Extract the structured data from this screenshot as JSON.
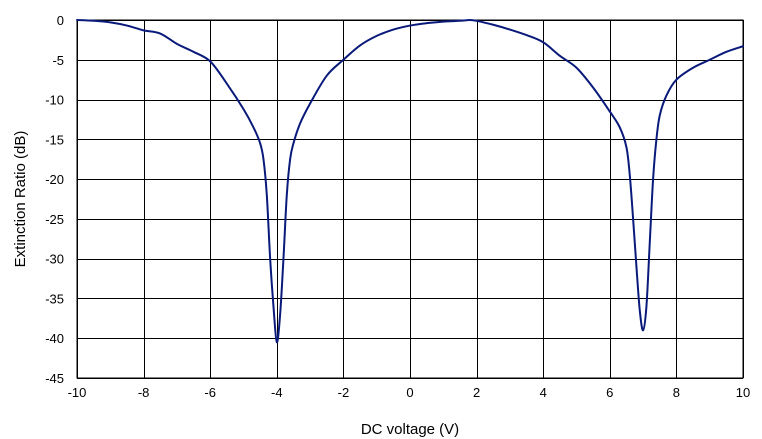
{
  "chart_data": {
    "type": "line",
    "title": "",
    "xlabel": "DC voltage (V)",
    "ylabel": "Extinction Ratio (dB)",
    "xlim": [
      -10,
      10
    ],
    "ylim": [
      -45,
      0
    ],
    "x_ticks": [
      -10,
      -8,
      -6,
      -4,
      -2,
      0,
      2,
      4,
      6,
      8,
      10
    ],
    "y_ticks": [
      0,
      -5,
      -10,
      -15,
      -20,
      -25,
      -30,
      -35,
      -40,
      -45
    ],
    "x_tick_labels": [
      "-10",
      "-8",
      "-6",
      "-4",
      "-2",
      "0",
      "2",
      "4",
      "6",
      "8",
      "10"
    ],
    "y_tick_labels": [
      "0",
      "-5",
      "-10",
      "-15",
      "-20",
      "-25",
      "-30",
      "-35",
      "-40",
      "-45"
    ],
    "grid": true,
    "series": [
      {
        "color": "#0a1a7a",
        "x": [
          -10,
          -9.5,
          -9,
          -8.5,
          -8,
          -7.5,
          -7,
          -6.5,
          -6,
          -5.5,
          -5,
          -4.7,
          -4.5,
          -4.4,
          -4.3,
          -4.2,
          -4.1,
          -4.0,
          -3.9,
          -3.8,
          -3.7,
          -3.6,
          -3.5,
          -3.3,
          -3,
          -2.5,
          -2,
          -1.5,
          -1,
          -0.5,
          0,
          0.5,
          1,
          1.5,
          1.8,
          2,
          2.5,
          3,
          3.5,
          4,
          4.5,
          5,
          5.5,
          6,
          6.3,
          6.5,
          6.6,
          6.7,
          6.8,
          6.9,
          7.0,
          7.1,
          7.2,
          7.3,
          7.4,
          7.5,
          7.7,
          8,
          8.5,
          9,
          9.5,
          10
        ],
        "y": [
          0,
          -0.1,
          -0.3,
          -0.7,
          -1.3,
          -1.7,
          -3,
          -4,
          -5.2,
          -8,
          -11.2,
          -13.5,
          -15.5,
          -17.5,
          -22,
          -30,
          -36,
          -40.5,
          -37,
          -30,
          -22,
          -17.5,
          -15.5,
          -13,
          -10.5,
          -7,
          -5,
          -3.2,
          -2,
          -1.2,
          -0.7,
          -0.4,
          -0.2,
          -0.1,
          0,
          -0.1,
          -0.6,
          -1.2,
          -1.9,
          -2.8,
          -4.5,
          -6,
          -8.5,
          -11.5,
          -13.5,
          -16,
          -19.5,
          -25,
          -31,
          -36.5,
          -39,
          -36,
          -28,
          -20,
          -15,
          -12,
          -9.5,
          -7.5,
          -6,
          -5,
          -4,
          -3.3
        ]
      }
    ]
  }
}
